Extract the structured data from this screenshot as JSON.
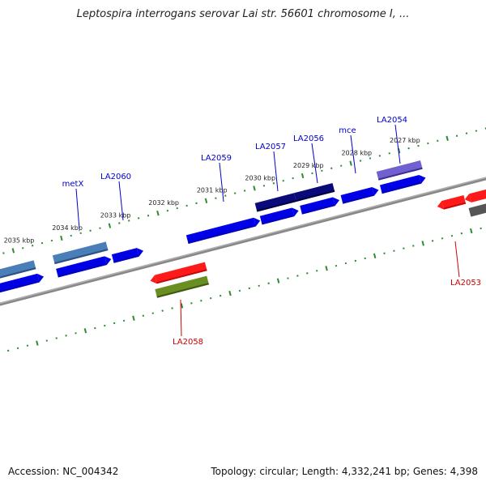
{
  "title": "Leptospira interrogans serovar Lai str. 56601 chromosome I, ...",
  "footer": {
    "accession": "Accession: NC_004342",
    "summary": "Topology: circular; Length: 4,332,241 bp; Genes: 4,398"
  },
  "colors": {
    "backbone": "#7a7a7a",
    "tick": "#2e8b2e",
    "label_forward": "#0000cc",
    "label_reverse": "#cc0000"
  },
  "scale_labels": [
    "2035 kbp",
    "2034 kbp",
    "2033 kbp",
    "2032 kbp",
    "2031 kbp",
    "2030 kbp",
    "2029 kbp",
    "2028 kbp",
    "2027 kbp"
  ],
  "gene_labels": [
    {
      "text": "metX",
      "strand": "forward"
    },
    {
      "text": "LA2060",
      "strand": "forward"
    },
    {
      "text": "LA2059",
      "strand": "forward"
    },
    {
      "text": "LA2057",
      "strand": "forward"
    },
    {
      "text": "LA2056",
      "strand": "forward"
    },
    {
      "text": "mce",
      "strand": "forward"
    },
    {
      "text": "LA2054",
      "strand": "forward"
    },
    {
      "text": "LA2058",
      "strand": "reverse"
    },
    {
      "text": "LA2053",
      "strand": "reverse"
    }
  ]
}
